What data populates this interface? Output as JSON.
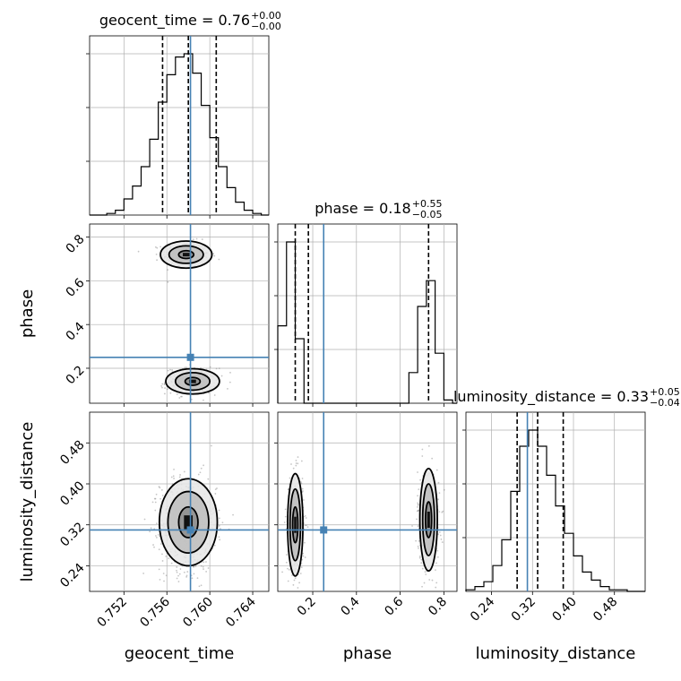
{
  "colors": {
    "truth": "#4682b4",
    "hist": "#000000",
    "scatter": "#808080",
    "grid": "#b0b0b0"
  },
  "chart_data": {
    "type": "corner",
    "params": [
      "geocent_time",
      "phase",
      "luminosity_distance"
    ],
    "truths": {
      "geocent_time": 0.7582,
      "phase": 0.25,
      "luminosity_distance": 0.31
    },
    "ranges": {
      "geocent_time": [
        0.7488,
        0.7655
      ],
      "phase": [
        0.04,
        0.86
      ],
      "luminosity_distance": [
        0.19,
        0.54
      ]
    },
    "ticks": {
      "geocent_time": [
        {
          "v": 0.752,
          "label": "0.752"
        },
        {
          "v": 0.756,
          "label": "0.756"
        },
        {
          "v": 0.76,
          "label": "0.760"
        },
        {
          "v": 0.764,
          "label": "0.764"
        }
      ],
      "phase": [
        {
          "v": 0.2,
          "label": "0.2"
        },
        {
          "v": 0.4,
          "label": "0.4"
        },
        {
          "v": 0.6,
          "label": "0.6"
        },
        {
          "v": 0.8,
          "label": "0.8"
        }
      ],
      "luminosity_distance": [
        {
          "v": 0.24,
          "label": "0.24"
        },
        {
          "v": 0.32,
          "label": "0.32"
        },
        {
          "v": 0.4,
          "label": "0.40"
        },
        {
          "v": 0.48,
          "label": "0.48"
        }
      ]
    },
    "diag_titles": {
      "geocent_time": {
        "prefix": "geocent_time = 0.76",
        "sup": "+0.00",
        "sub": "−0.00"
      },
      "phase": {
        "prefix": "phase = 0.18",
        "sup": "+0.55",
        "sub": "−0.05"
      },
      "luminosity_distance": {
        "prefix": "luminosity_distance = 0.33",
        "sup": "+0.05",
        "sub": "−0.04"
      }
    },
    "quantiles": {
      "geocent_time": [
        0.7556,
        0.758,
        0.7606
      ],
      "phase": [
        0.12,
        0.18,
        0.73
      ],
      "luminosity_distance": [
        0.29,
        0.33,
        0.38
      ]
    },
    "hist": {
      "geocent_time": {
        "edges": [
          0.7488,
          0.7496,
          0.7504,
          0.7512,
          0.752,
          0.7528,
          0.7536,
          0.7544,
          0.7552,
          0.756,
          0.7568,
          0.7576,
          0.7584,
          0.7592,
          0.76,
          0.7608,
          0.7616,
          0.7624,
          0.7632,
          0.764,
          0.7648,
          0.7655
        ],
        "counts": [
          0,
          0,
          1,
          3,
          10,
          18,
          30,
          47,
          70,
          87,
          98,
          100,
          88,
          68,
          48,
          30,
          17,
          8,
          3,
          1,
          0
        ]
      },
      "phase": {
        "edges": [
          0.04,
          0.08,
          0.12,
          0.16,
          0.2,
          0.24,
          0.28,
          0.32,
          0.36,
          0.4,
          0.44,
          0.48,
          0.52,
          0.56,
          0.6,
          0.64,
          0.68,
          0.72,
          0.76,
          0.8,
          0.84,
          0.86
        ],
        "counts": [
          48,
          100,
          40,
          0,
          0,
          0,
          0,
          0,
          0,
          0,
          0,
          0,
          0,
          0,
          0,
          19,
          60,
          76,
          31,
          2,
          0
        ]
      },
      "luminosity_distance": {
        "edges": [
          0.19,
          0.2075,
          0.225,
          0.2425,
          0.26,
          0.2775,
          0.295,
          0.3125,
          0.33,
          0.3475,
          0.365,
          0.3825,
          0.4,
          0.4175,
          0.435,
          0.4525,
          0.47,
          0.4875,
          0.505,
          0.5225,
          0.54
        ],
        "counts": [
          1,
          3,
          6,
          16,
          32,
          62,
          90,
          100,
          90,
          72,
          53,
          36,
          22,
          12,
          7,
          3,
          1,
          1,
          0,
          0
        ]
      }
    },
    "modes": {
      "geocent_time__phase": [
        {
          "cx": 0.7578,
          "cy": 0.72,
          "sx": 0.0011,
          "sy": 0.03,
          "n": 300
        },
        {
          "cx": 0.7583,
          "cy": 0.14,
          "sx": 0.0012,
          "sy": 0.03,
          "n": 320
        }
      ],
      "geocent_time__luminosity_distance": [
        {
          "cx": 0.758,
          "cy": 0.32,
          "sx": 0.0013,
          "sy": 0.045,
          "n": 700
        }
      ],
      "phase__luminosity_distance": [
        {
          "cx": 0.12,
          "cy": 0.32,
          "sx": 0.02,
          "sy": 0.05,
          "n": 380
        },
        {
          "cx": 0.73,
          "cy": 0.33,
          "sx": 0.025,
          "sy": 0.05,
          "n": 320
        }
      ]
    },
    "contours": {
      "geocent_time__phase": [
        {
          "cx": 0.7578,
          "cy": 0.72,
          "rx": [
            0.0007,
            0.0016,
            0.0024
          ],
          "ry": [
            0.018,
            0.04,
            0.062
          ]
        },
        {
          "cx": 0.7584,
          "cy": 0.14,
          "rx": [
            0.0007,
            0.0016,
            0.0025
          ],
          "ry": [
            0.018,
            0.04,
            0.058
          ]
        }
      ],
      "geocent_time__luminosity_distance": [
        {
          "cx": 0.758,
          "cy": 0.325,
          "rx": [
            0.0009,
            0.0019,
            0.0027
          ],
          "ry": [
            0.03,
            0.06,
            0.085
          ]
        }
      ],
      "phase__luminosity_distance": [
        {
          "cx": 0.12,
          "cy": 0.32,
          "rx": [
            0.012,
            0.024,
            0.035
          ],
          "ry": [
            0.035,
            0.07,
            0.1
          ]
        },
        {
          "cx": 0.73,
          "cy": 0.33,
          "rx": [
            0.014,
            0.027,
            0.04
          ],
          "ry": [
            0.035,
            0.07,
            0.1
          ]
        }
      ]
    }
  }
}
